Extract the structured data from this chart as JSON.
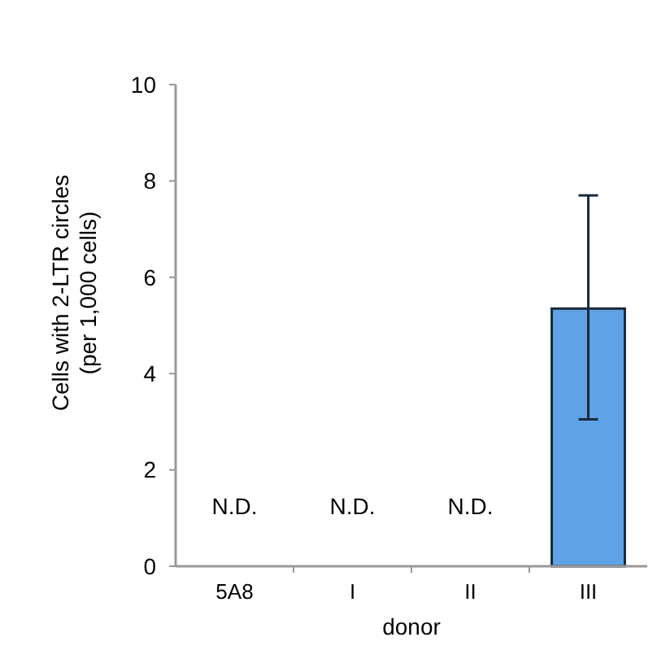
{
  "chart_data": {
    "type": "bar",
    "xlabel": "donor",
    "ylabel": "Cells with 2-LTR circles\n(per 1,000 cells)",
    "categories": [
      "5A8",
      "I",
      "II",
      "III"
    ],
    "values": [
      null,
      null,
      null,
      5.35
    ],
    "errors": [
      null,
      null,
      null,
      [
        3.05,
        7.7
      ]
    ],
    "color": "#5fa3e6",
    "ylim": [
      0,
      10
    ],
    "yticks": [
      0,
      2,
      4,
      6,
      8,
      10
    ],
    "value_labels": [
      "N.D.",
      "N.D.",
      "N.D.",
      null
    ]
  }
}
